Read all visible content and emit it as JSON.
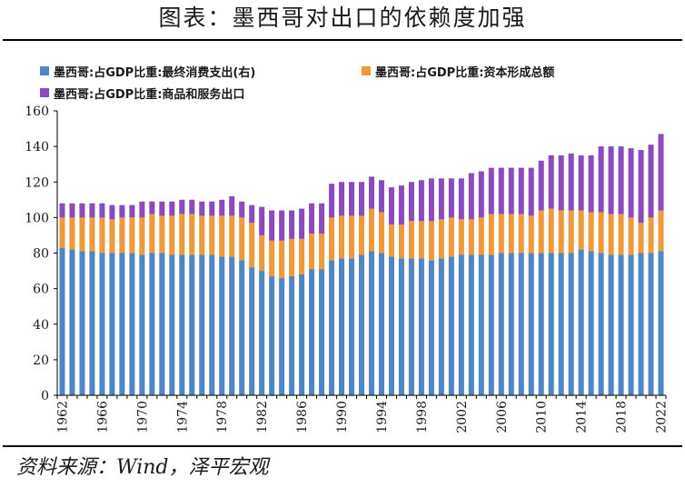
{
  "header": {
    "title": "图表：墨西哥对出口的依赖度加强"
  },
  "footer": {
    "source": "资料来源：Wind，泽平宏观"
  },
  "chart_data": {
    "type": "bar",
    "stacked": true,
    "title": "图表：墨西哥对出口的依赖度加强",
    "xlabel": "",
    "ylabel": "",
    "ylim": [
      0,
      160
    ],
    "yticks": [
      0,
      20,
      40,
      60,
      80,
      100,
      120,
      140,
      160
    ],
    "xtick_labels": [
      "1962",
      "1966",
      "1970",
      "1974",
      "1978",
      "1982",
      "1986",
      "1990",
      "1994",
      "1998",
      "2002",
      "2006",
      "2010",
      "2014",
      "2018",
      "2022"
    ],
    "legend_position": "top-left",
    "categories": [
      "1962",
      "1963",
      "1964",
      "1965",
      "1966",
      "1967",
      "1968",
      "1969",
      "1970",
      "1971",
      "1972",
      "1973",
      "1974",
      "1975",
      "1976",
      "1977",
      "1978",
      "1979",
      "1980",
      "1981",
      "1982",
      "1983",
      "1984",
      "1985",
      "1986",
      "1987",
      "1988",
      "1989",
      "1990",
      "1991",
      "1992",
      "1993",
      "1994",
      "1995",
      "1996",
      "1997",
      "1998",
      "1999",
      "2000",
      "2001",
      "2002",
      "2003",
      "2004",
      "2005",
      "2006",
      "2007",
      "2008",
      "2009",
      "2010",
      "2011",
      "2012",
      "2013",
      "2014",
      "2015",
      "2016",
      "2017",
      "2018",
      "2019",
      "2020",
      "2021",
      "2022"
    ],
    "series": [
      {
        "name": "墨西哥:占GDP比重:最终消费支出(右)",
        "color": "#4f86c6",
        "values": [
          83,
          82,
          81,
          81,
          80,
          80,
          80,
          80,
          79,
          80,
          80,
          79,
          79,
          79,
          79,
          79,
          78,
          78,
          76,
          72,
          70,
          67,
          66,
          67,
          68,
          71,
          71,
          76,
          77,
          77,
          79,
          81,
          80,
          78,
          77,
          77,
          77,
          76,
          77,
          78,
          79,
          79,
          79,
          79,
          80,
          80,
          80,
          80,
          80,
          80,
          80,
          80,
          82,
          81,
          80,
          79,
          79,
          79,
          80,
          80,
          81
        ]
      },
      {
        "name": "墨西哥:占GDP比重:资本形成总额",
        "color": "#ee9a3a",
        "values": [
          17,
          18,
          19,
          19,
          20,
          19,
          20,
          20,
          21,
          22,
          21,
          22,
          23,
          23,
          22,
          22,
          23,
          23,
          24,
          25,
          20,
          20,
          21,
          21,
          20,
          20,
          20,
          24,
          24,
          24,
          22,
          24,
          23,
          18,
          19,
          21,
          21,
          22,
          22,
          22,
          20,
          20,
          21,
          23,
          22,
          22,
          22,
          21,
          24,
          25,
          24,
          24,
          22,
          22,
          23,
          23,
          23,
          21,
          17,
          20,
          23
        ]
      },
      {
        "name": "墨西哥:占GDP比重:商品和服务出口",
        "color": "#8a4bbf",
        "values": [
          8,
          8,
          8,
          8,
          8,
          8,
          7,
          7,
          9,
          7,
          8,
          8,
          8,
          8,
          8,
          8,
          9,
          11,
          9,
          10,
          16,
          17,
          17,
          16,
          17,
          17,
          17,
          19,
          19,
          19,
          19,
          18,
          18,
          21,
          22,
          22,
          23,
          24,
          23,
          22,
          23,
          26,
          26,
          26,
          26,
          26,
          26,
          27,
          28,
          30,
          31,
          32,
          31,
          32,
          37,
          38,
          38,
          39,
          41,
          41,
          43
        ]
      }
    ]
  }
}
